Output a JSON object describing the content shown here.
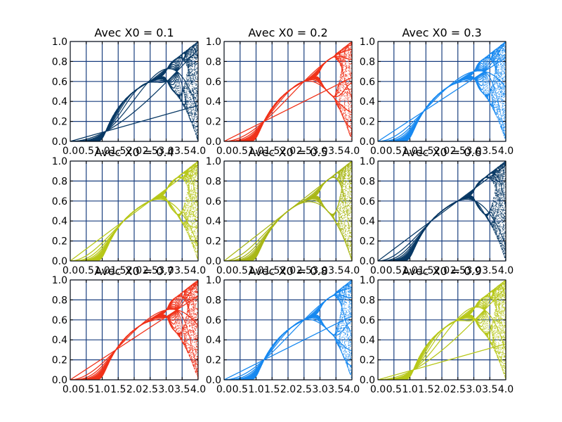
{
  "chart_data": [
    {
      "type": "scatter",
      "title": "Avec X0 = 0.1",
      "color": "#0b3b66",
      "x0": 0.1,
      "xlim": [
        0,
        4
      ],
      "ylim": [
        0,
        1
      ],
      "xticks": [
        "0.0",
        "0.5",
        "1.0",
        "1.5",
        "2.0",
        "2.5",
        "3.0",
        "3.5",
        "4.0"
      ],
      "yticks": [
        "0.0",
        "0.2",
        "0.4",
        "0.6",
        "0.8",
        "1.0"
      ],
      "grid": true
    },
    {
      "type": "scatter",
      "title": "Avec X0 = 0.2",
      "color": "#f0341c",
      "x0": 0.2,
      "xlim": [
        0,
        4
      ],
      "ylim": [
        0,
        1
      ],
      "xticks": [
        "0.0",
        "0.5",
        "1.0",
        "1.5",
        "2.0",
        "2.5",
        "3.0",
        "3.5",
        "4.0"
      ],
      "yticks": [
        "0.0",
        "0.2",
        "0.4",
        "0.6",
        "0.8",
        "1.0"
      ],
      "grid": true
    },
    {
      "type": "scatter",
      "title": "Avec X0 = 0.3",
      "color": "#1a8af0",
      "x0": 0.3,
      "xlim": [
        0,
        4
      ],
      "ylim": [
        0,
        1
      ],
      "xticks": [
        "0.0",
        "0.5",
        "1.0",
        "1.5",
        "2.0",
        "2.5",
        "3.0",
        "3.5",
        "4.0"
      ],
      "yticks": [
        "0.0",
        "0.2",
        "0.4",
        "0.6",
        "0.8",
        "1.0"
      ],
      "grid": true
    },
    {
      "type": "scatter",
      "title": "Avec X0 = 0.4",
      "color": "#b8c81c",
      "x0": 0.4,
      "xlim": [
        0,
        4
      ],
      "ylim": [
        0,
        1
      ],
      "xticks": [
        "0.0",
        "0.5",
        "1.0",
        "1.5",
        "2.0",
        "2.5",
        "3.0",
        "3.5",
        "4.0"
      ],
      "yticks": [
        "0.0",
        "0.2",
        "0.4",
        "0.6",
        "0.8",
        "1.0"
      ],
      "grid": true
    },
    {
      "type": "scatter",
      "title": "Avec X0 = 0.5",
      "color": "#aab81a",
      "x0": 0.5,
      "xlim": [
        0,
        4
      ],
      "ylim": [
        0,
        1
      ],
      "xticks": [
        "0.0",
        "0.5",
        "1.0",
        "1.5",
        "2.0",
        "2.5",
        "3.0",
        "3.5",
        "4.0"
      ],
      "yticks": [
        "0.0",
        "0.2",
        "0.4",
        "0.6",
        "0.8",
        "1.0"
      ],
      "grid": true
    },
    {
      "type": "scatter",
      "title": "Avec X0 = 0.6",
      "color": "#0b3b66",
      "x0": 0.6,
      "xlim": [
        0,
        4
      ],
      "ylim": [
        0,
        1
      ],
      "xticks": [
        "0.0",
        "0.5",
        "1.0",
        "1.5",
        "2.0",
        "2.5",
        "3.0",
        "3.5",
        "4.0"
      ],
      "yticks": [
        "0.0",
        "0.2",
        "0.4",
        "0.6",
        "0.8",
        "1.0"
      ],
      "grid": true
    },
    {
      "type": "scatter",
      "title": "Avec X0 = 0.7",
      "color": "#f0341c",
      "x0": 0.7,
      "xlim": [
        0,
        4
      ],
      "ylim": [
        0,
        1
      ],
      "xticks": [
        "0.0",
        "0.5",
        "1.0",
        "1.5",
        "2.0",
        "2.5",
        "3.0",
        "3.5",
        "4.0"
      ],
      "yticks": [
        "0.0",
        "0.2",
        "0.4",
        "0.6",
        "0.8",
        "1.0"
      ],
      "grid": true
    },
    {
      "type": "scatter",
      "title": "Avec X0 = 0.8",
      "color": "#1a8af0",
      "x0": 0.8,
      "xlim": [
        0,
        4
      ],
      "ylim": [
        0,
        1
      ],
      "xticks": [
        "0.0",
        "0.5",
        "1.0",
        "1.5",
        "2.0",
        "2.5",
        "3.0",
        "3.5",
        "4.0"
      ],
      "yticks": [
        "0.0",
        "0.2",
        "0.4",
        "0.6",
        "0.8",
        "1.0"
      ],
      "grid": true
    },
    {
      "type": "scatter",
      "title": "Avec X0 = 0.9",
      "color": "#b8c81c",
      "x0": 0.9,
      "xlim": [
        0,
        4
      ],
      "ylim": [
        0,
        1
      ],
      "xticks": [
        "0.0",
        "0.5",
        "1.0",
        "1.5",
        "2.0",
        "2.5",
        "3.0",
        "3.5",
        "4.0"
      ],
      "yticks": [
        "0.0",
        "0.2",
        "0.4",
        "0.6",
        "0.8",
        "1.0"
      ],
      "grid": true
    }
  ]
}
